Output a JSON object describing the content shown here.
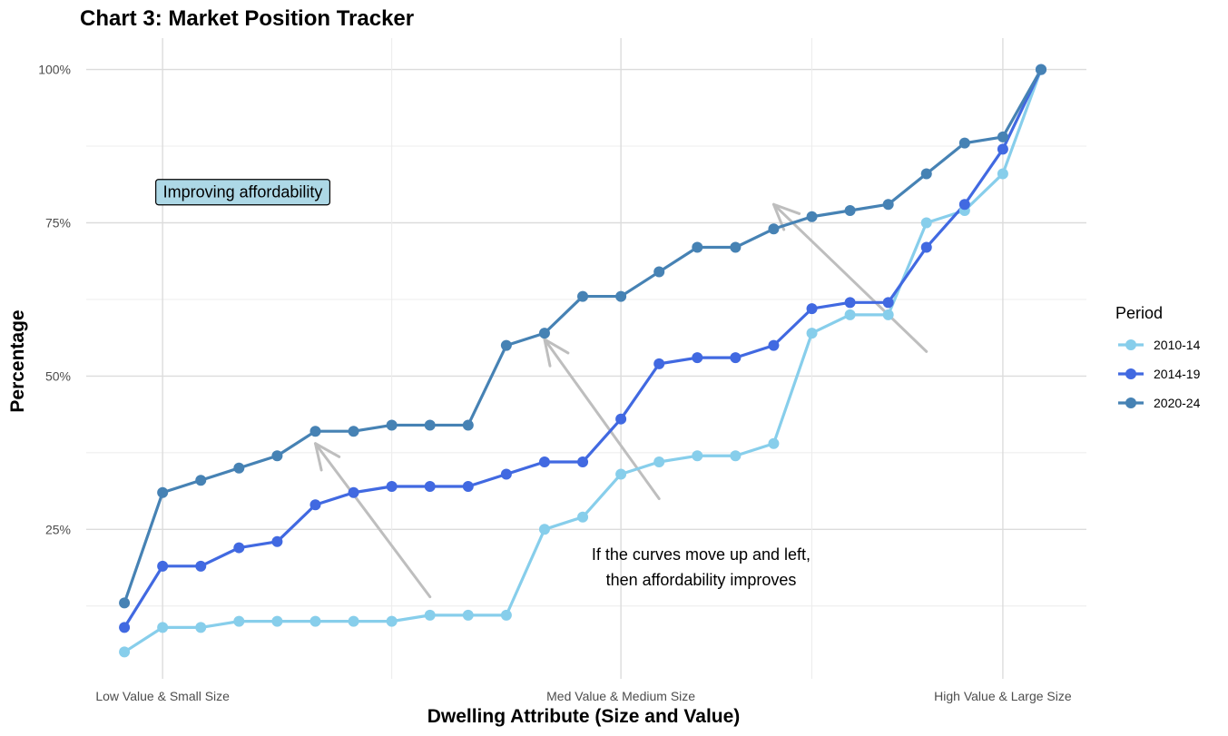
{
  "chart_data": {
    "type": "line",
    "title": "Chart 3:  Market Position Tracker",
    "xlabel": "Dwelling Attribute (Size and Value)",
    "ylabel": "Percentage",
    "x_tick_labels": [
      "Low Value & Small Size",
      "Med Value & Medium Size",
      "High Value & Large Size"
    ],
    "x_tick_positions": [
      2,
      14,
      24
    ],
    "x_range": [
      0,
      26
    ],
    "y_range": [
      0,
      1
    ],
    "y_ticks": [
      0.25,
      0.5,
      0.75,
      1.0
    ],
    "y_tick_labels": [
      "25%",
      "50%",
      "75%",
      "100%"
    ],
    "grid": true,
    "legend": {
      "title": "Period",
      "position": "right"
    },
    "x": [
      1,
      2,
      3,
      4,
      5,
      6,
      7,
      8,
      9,
      10,
      11,
      12,
      13,
      14,
      15,
      16,
      17,
      18,
      19,
      20,
      21,
      22,
      23,
      24,
      25
    ],
    "series": [
      {
        "name": "2010-14",
        "color": "#87ceeb",
        "values": [
          0.05,
          0.09,
          0.09,
          0.1,
          0.1,
          0.1,
          0.1,
          0.1,
          0.11,
          0.11,
          0.11,
          0.25,
          0.27,
          0.34,
          0.36,
          0.37,
          0.37,
          0.39,
          0.57,
          0.6,
          0.6,
          0.75,
          0.77,
          0.83,
          1.0
        ]
      },
      {
        "name": "2014-19",
        "color": "#4169e1",
        "values": [
          0.09,
          0.19,
          0.19,
          0.22,
          0.23,
          0.29,
          0.31,
          0.32,
          0.32,
          0.32,
          0.34,
          0.36,
          0.36,
          0.43,
          0.52,
          0.53,
          0.53,
          0.55,
          0.61,
          0.62,
          0.62,
          0.71,
          0.78,
          0.87,
          1.0
        ]
      },
      {
        "name": "2020-24",
        "color": "#4682b4",
        "values": [
          0.13,
          0.31,
          0.33,
          0.35,
          0.37,
          0.41,
          0.41,
          0.42,
          0.42,
          0.42,
          0.55,
          0.57,
          0.63,
          0.63,
          0.67,
          0.71,
          0.71,
          0.74,
          0.76,
          0.77,
          0.78,
          0.83,
          0.88,
          0.89,
          1.0
        ]
      }
    ],
    "annotations": [
      {
        "type": "label",
        "text": "Improving affordability",
        "fill": "#add8e6",
        "x": 4.1,
        "y": 0.8
      },
      {
        "type": "text",
        "lines": [
          "If the curves move up and left,",
          "then affordability improves"
        ],
        "x": 16.1,
        "y": 0.2
      },
      {
        "type": "arrow",
        "from": [
          9,
          0.14
        ],
        "to": [
          6,
          0.39
        ]
      },
      {
        "type": "arrow",
        "from": [
          15,
          0.3
        ],
        "to": [
          12,
          0.56
        ]
      },
      {
        "type": "arrow",
        "from": [
          22,
          0.54
        ],
        "to": [
          18,
          0.78
        ]
      }
    ]
  }
}
